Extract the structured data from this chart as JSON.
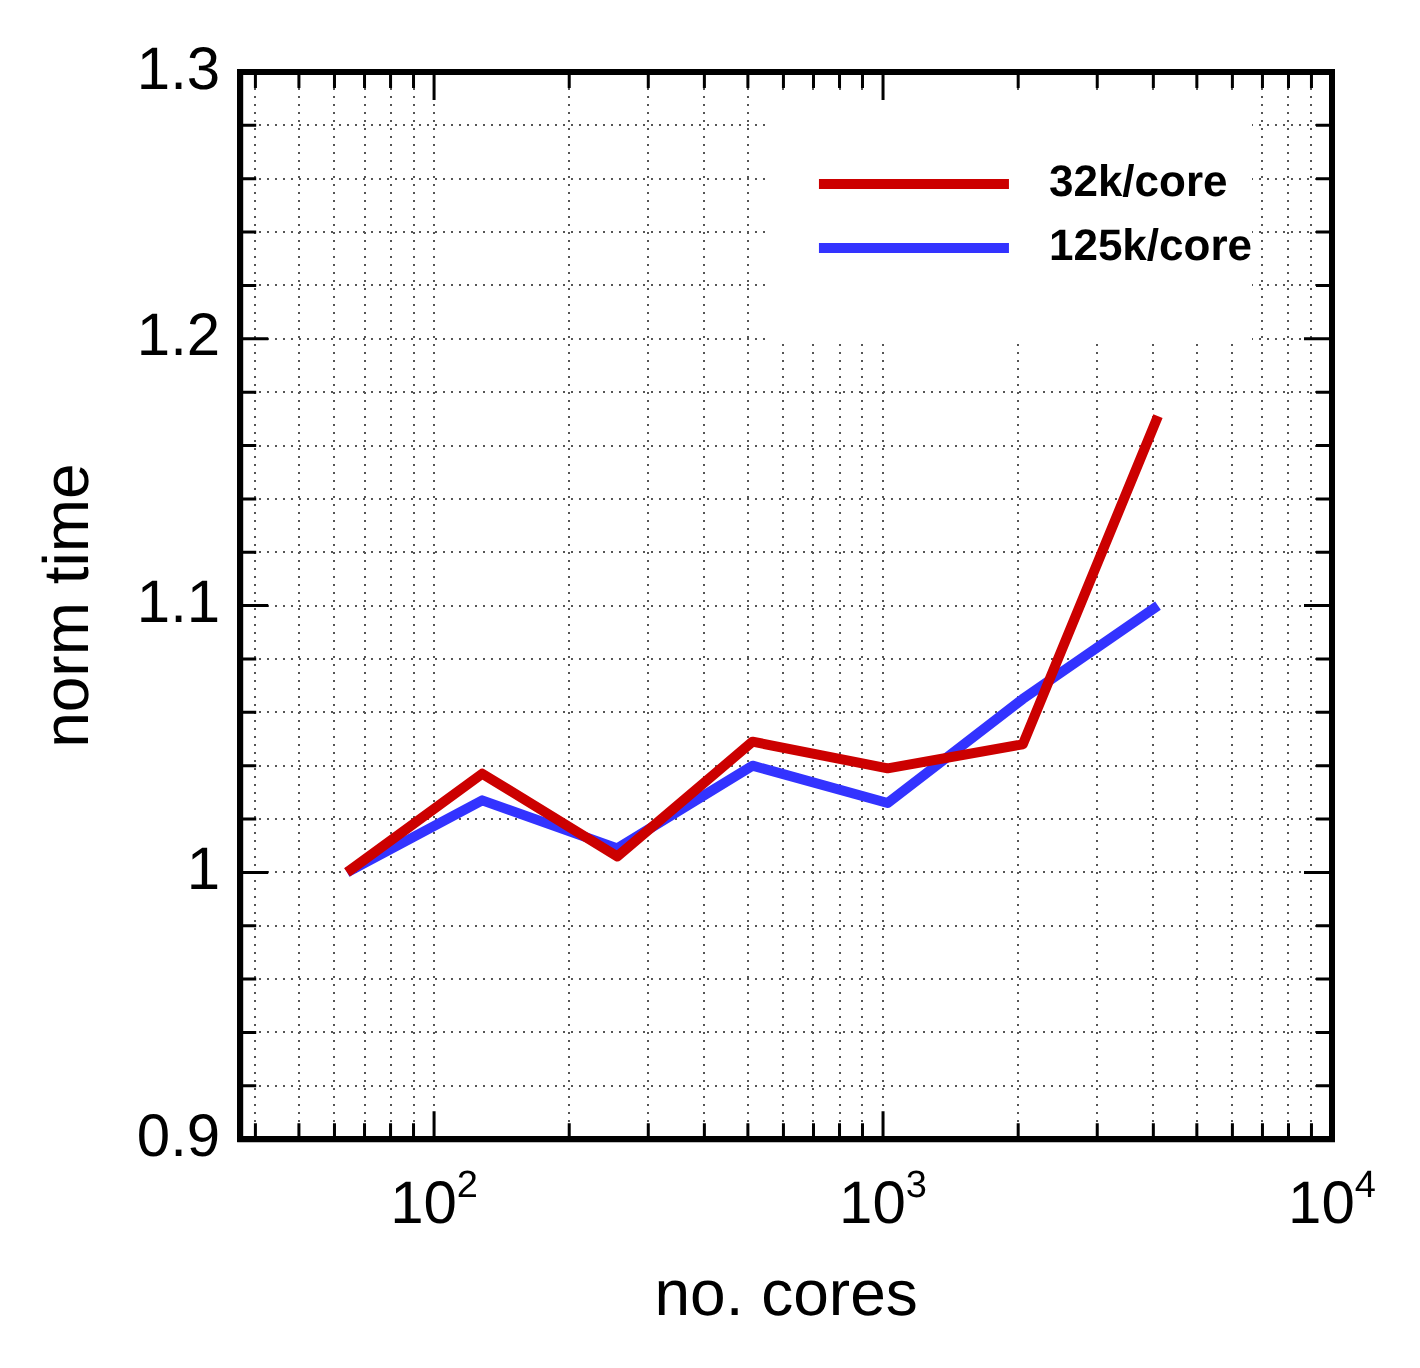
{
  "chart_data": {
    "type": "line",
    "xlabel": "no. cores",
    "ylabel": "norm time",
    "x": [
      64,
      128,
      256,
      512,
      1024,
      2048,
      4096
    ],
    "series": [
      {
        "name": "32k/core",
        "color": "#cc0000",
        "values": [
          1.0,
          1.037,
          1.006,
          1.049,
          1.039,
          1.048,
          1.171
        ]
      },
      {
        "name": "125k/core",
        "color": "#3333ff",
        "values": [
          1.0,
          1.027,
          1.009,
          1.04,
          1.026,
          1.065,
          1.1
        ]
      }
    ],
    "log": "x",
    "xlim": [
      37,
      10000
    ],
    "xticks": [
      {
        "value": 40,
        "label": null
      },
      {
        "value": 50,
        "label": null
      },
      {
        "value": 60,
        "label": null
      },
      {
        "value": 70,
        "label": null
      },
      {
        "value": 80,
        "label": null
      },
      {
        "value": 90,
        "label": null
      },
      {
        "value": 100,
        "label": "10$^{2}$"
      },
      {
        "value": 200,
        "label": null
      },
      {
        "value": 300,
        "label": null
      },
      {
        "value": 400,
        "label": null
      },
      {
        "value": 500,
        "label": null
      },
      {
        "value": 600,
        "label": null
      },
      {
        "value": 700,
        "label": null
      },
      {
        "value": 800,
        "label": null
      },
      {
        "value": 900,
        "label": null
      },
      {
        "value": 1000,
        "label": "10$^{3}$"
      },
      {
        "value": 2000,
        "label": null
      },
      {
        "value": 3000,
        "label": null
      },
      {
        "value": 4000,
        "label": null
      },
      {
        "value": 5000,
        "label": null
      },
      {
        "value": 6000,
        "label": null
      },
      {
        "value": 7000,
        "label": null
      },
      {
        "value": 8000,
        "label": null
      },
      {
        "value": 9000,
        "label": null
      },
      {
        "value": 10000,
        "label": "10$^{4}$"
      }
    ],
    "ylim": [
      0.9,
      1.3
    ],
    "yticks": [
      {
        "value": 0.9,
        "label": "0.9"
      },
      {
        "value": 0.92,
        "label": null
      },
      {
        "value": 0.94,
        "label": null
      },
      {
        "value": 0.96,
        "label": null
      },
      {
        "value": 0.98,
        "label": null
      },
      {
        "value": 1,
        "label": "1"
      },
      {
        "value": 1.02,
        "label": null
      },
      {
        "value": 1.04,
        "label": null
      },
      {
        "value": 1.06,
        "label": null
      },
      {
        "value": 1.08,
        "label": null
      },
      {
        "value": 1.1,
        "label": "1.1"
      },
      {
        "value": 1.12,
        "label": null
      },
      {
        "value": 1.14,
        "label": null
      },
      {
        "value": 1.16,
        "label": null
      },
      {
        "value": 1.18,
        "label": null
      },
      {
        "value": 1.2,
        "label": "1.2"
      },
      {
        "value": 1.22,
        "label": null
      },
      {
        "value": 1.24,
        "label": null
      },
      {
        "value": 1.26,
        "label": null
      },
      {
        "value": 1.28,
        "label": null
      },
      {
        "value": 1.3,
        "label": "1.3"
      }
    ],
    "grid": true,
    "legend": "top right",
    "marker": "none",
    "line_style": "solid"
  }
}
